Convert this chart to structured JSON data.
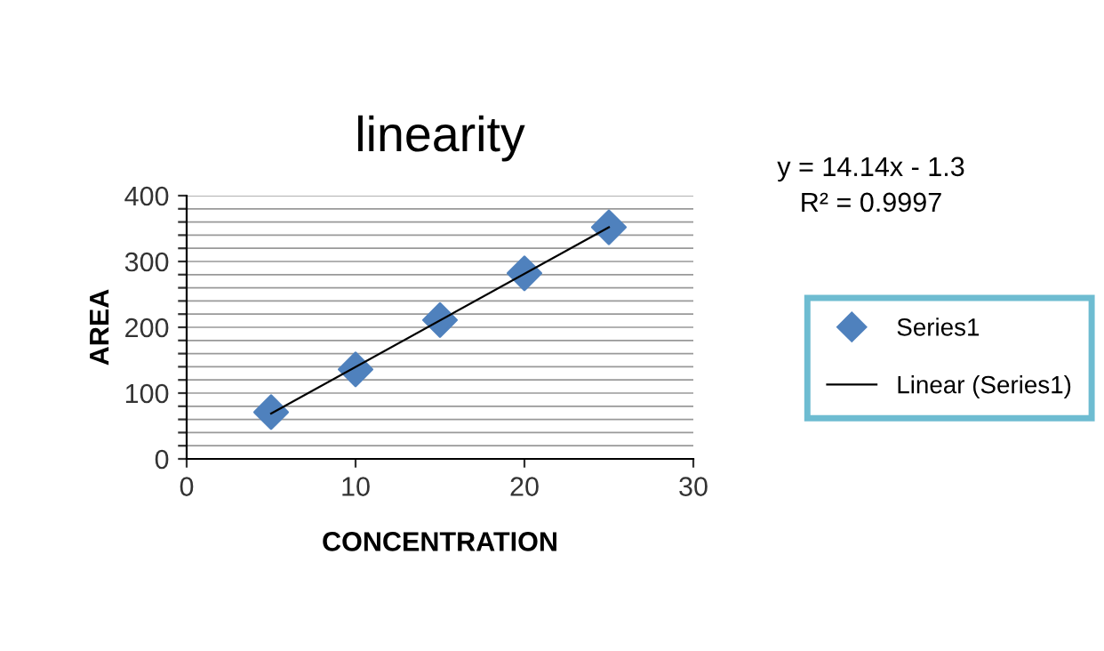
{
  "chart_data": {
    "type": "scatter",
    "title": "linearity",
    "xlabel": "CONCENTRATION",
    "ylabel": "AREA",
    "x": [
      5,
      10,
      15,
      20,
      25
    ],
    "series": [
      {
        "name": "Series1",
        "color": "#4f81bd",
        "marker": "diamond",
        "values": [
          71,
          136,
          211,
          282,
          352
        ]
      },
      {
        "name": "Linear (Series1)",
        "type": "line",
        "color": "#000000",
        "marker": "none",
        "line_style": "solid",
        "x": [
          5,
          25
        ],
        "values": [
          69,
          352
        ]
      }
    ],
    "annotations": [
      "y = 14.14x - 1.3",
      "R² = 0.9997"
    ],
    "xlim": [
      0,
      30
    ],
    "xticks": [
      0,
      10,
      20,
      30
    ],
    "ylim": [
      0,
      400
    ],
    "yticks": [
      0,
      {
        "value": 20,
        "label": null
      },
      {
        "value": 40,
        "label": null
      },
      {
        "value": 60,
        "label": null
      },
      {
        "value": 80,
        "label": null
      },
      100,
      {
        "value": 120,
        "label": null
      },
      {
        "value": 140,
        "label": null
      },
      {
        "value": 160,
        "label": null
      },
      {
        "value": 180,
        "label": null
      },
      200,
      {
        "value": 220,
        "label": null
      },
      {
        "value": 240,
        "label": null
      },
      {
        "value": 260,
        "label": null
      },
      {
        "value": 280,
        "label": null
      },
      300,
      {
        "value": 320,
        "label": null
      },
      {
        "value": 340,
        "label": null
      },
      {
        "value": 360,
        "label": null
      },
      {
        "value": 380,
        "label": null
      },
      400
    ],
    "grid": "y",
    "legend": "right"
  }
}
